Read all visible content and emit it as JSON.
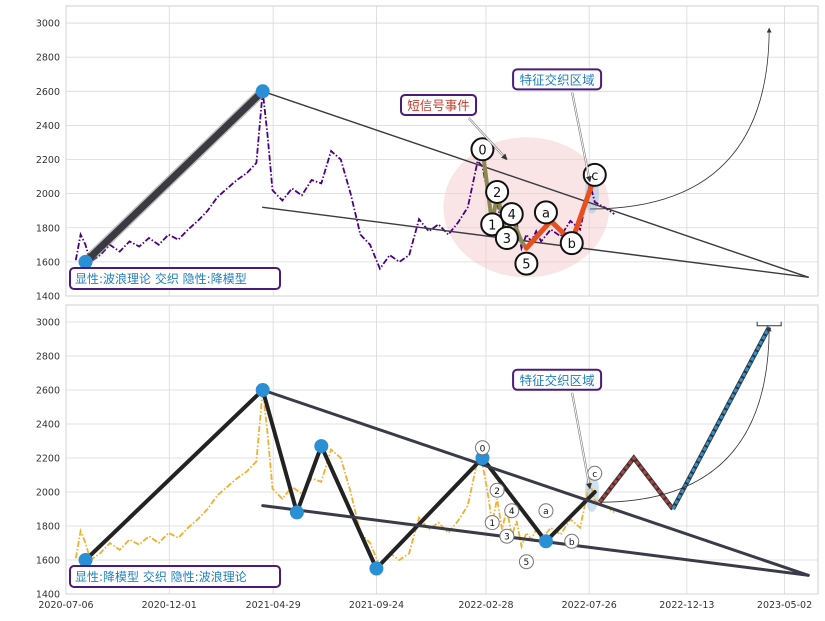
{
  "chart_data": [
    {
      "type": "line",
      "panel": "top",
      "ylim": [
        1400,
        3100
      ],
      "y_ticks": [
        1400,
        1600,
        1800,
        2000,
        2200,
        2400,
        2600,
        2800,
        3000
      ],
      "x_range": [
        "2020-07-06",
        "2023-06-19"
      ],
      "grid": true,
      "series": [
        {
          "style": "dash-dot",
          "color": "#4b0082",
          "points": [
            [
              "2020-07-20",
              1610
            ],
            [
              "2020-07-27",
              1760
            ],
            [
              "2020-08-03",
              1700
            ],
            [
              "2020-08-10",
              1600
            ],
            [
              "2020-08-24",
              1640
            ],
            [
              "2020-09-07",
              1700
            ],
            [
              "2020-09-21",
              1660
            ],
            [
              "2020-10-05",
              1720
            ],
            [
              "2020-10-19",
              1690
            ],
            [
              "2020-11-02",
              1740
            ],
            [
              "2020-11-16",
              1700
            ],
            [
              "2020-11-30",
              1760
            ],
            [
              "2020-12-14",
              1730
            ],
            [
              "2020-12-28",
              1790
            ],
            [
              "2021-01-11",
              1840
            ],
            [
              "2021-01-25",
              1900
            ],
            [
              "2021-02-08",
              1980
            ],
            [
              "2021-02-22",
              2030
            ],
            [
              "2021-03-08",
              2080
            ],
            [
              "2021-03-22",
              2120
            ],
            [
              "2021-04-05",
              2180
            ],
            [
              "2021-04-14",
              2600
            ],
            [
              "2021-04-21",
              2340
            ],
            [
              "2021-04-28",
              2020
            ],
            [
              "2021-05-12",
              1960
            ],
            [
              "2021-05-26",
              2030
            ],
            [
              "2021-06-09",
              1990
            ],
            [
              "2021-06-23",
              2080
            ],
            [
              "2021-07-07",
              2060
            ],
            [
              "2021-07-21",
              2250
            ],
            [
              "2021-08-04",
              2200
            ],
            [
              "2021-08-18",
              2000
            ],
            [
              "2021-09-01",
              1760
            ],
            [
              "2021-09-15",
              1700
            ],
            [
              "2021-09-29",
              1560
            ],
            [
              "2021-10-13",
              1640
            ],
            [
              "2021-10-27",
              1600
            ],
            [
              "2021-11-10",
              1640
            ],
            [
              "2021-11-24",
              1850
            ],
            [
              "2021-12-08",
              1780
            ],
            [
              "2021-12-22",
              1820
            ],
            [
              "2022-01-05",
              1760
            ],
            [
              "2022-01-19",
              1830
            ],
            [
              "2022-02-02",
              1920
            ],
            [
              "2022-02-16",
              2190
            ],
            [
              "2022-02-23",
              2160
            ],
            [
              "2022-03-02",
              2010
            ],
            [
              "2022-03-09",
              1820
            ],
            [
              "2022-03-16",
              1960
            ],
            [
              "2022-03-23",
              1780
            ],
            [
              "2022-03-30",
              1900
            ],
            [
              "2022-04-06",
              1740
            ],
            [
              "2022-04-13",
              1830
            ],
            [
              "2022-04-20",
              1680
            ],
            [
              "2022-04-27",
              1760
            ],
            [
              "2022-05-04",
              1720
            ],
            [
              "2022-05-11",
              1780
            ],
            [
              "2022-05-18",
              1720
            ],
            [
              "2022-06-01",
              1790
            ],
            [
              "2022-06-15",
              1750
            ],
            [
              "2022-06-29",
              1840
            ],
            [
              "2022-07-13",
              1790
            ],
            [
              "2022-07-27",
              2060
            ],
            [
              "2022-08-03",
              1950
            ],
            [
              "2022-08-17",
              1920
            ],
            [
              "2022-08-31",
              1880
            ]
          ]
        },
        {
          "name": "wave-lines",
          "style": "solid",
          "color": "#3a3a40",
          "segments": [
            [
              [
                "2021-04-14",
                2600
              ],
              [
                "2023-06-05",
                1510
              ]
            ],
            [
              [
                "2021-04-14",
                1920
              ],
              [
                "2023-06-05",
                1510
              ]
            ],
            [
              [
                "2022-07-27",
                1910
              ],
              [
                "2023-04-10",
                2970
              ]
            ]
          ]
        },
        {
          "name": "impulse",
          "color": "#3a3a40",
          "segments": [
            [
              [
                "2020-08-03",
                1600
              ],
              [
                "2021-04-14",
                2600
              ]
            ]
          ]
        },
        {
          "name": "down-wave",
          "color": "#8a8a50",
          "segments": [
            [
              [
                "2022-02-23",
                2260
              ],
              [
                "2022-03-09",
                1820
              ],
              [
                "2022-03-16",
                2000
              ],
              [
                "2022-03-30",
                1740
              ],
              [
                "2022-04-06",
                1860
              ],
              [
                "2022-04-20",
                1720
              ],
              [
                "2022-04-27",
                1680
              ]
            ]
          ]
        },
        {
          "name": "abc",
          "color": "#e8501f",
          "segments": [
            [
              [
                "2022-04-27",
                1680
              ],
              [
                "2022-06-01",
                1840
              ],
              [
                "2022-07-01",
                1720
              ],
              [
                "2022-08-03",
                2100
              ]
            ]
          ]
        }
      ],
      "wave_labels": [
        {
          "text": "0",
          "x": "2022-02-23",
          "y": 2260
        },
        {
          "text": "1",
          "x": "2022-03-09",
          "y": 1820
        },
        {
          "text": "2",
          "x": "2022-03-16",
          "y": 2010
        },
        {
          "text": "3",
          "x": "2022-03-30",
          "y": 1740
        },
        {
          "text": "4",
          "x": "2022-04-06",
          "y": 1880
        },
        {
          "text": "5",
          "x": "2022-04-27",
          "y": 1590
        },
        {
          "text": "a",
          "x": "2022-05-25",
          "y": 1890
        },
        {
          "text": "b",
          "x": "2022-07-01",
          "y": 1710
        },
        {
          "text": "c",
          "x": "2022-08-03",
          "y": 2110
        }
      ],
      "key_points": [
        [
          "2020-08-03",
          1600
        ],
        [
          "2021-04-14",
          2600
        ]
      ],
      "annotations": [
        {
          "text": "特征交织区域",
          "x": "2022-06-10",
          "y": 2670,
          "color": "#1f7fbf"
        },
        {
          "text": "短信号事件",
          "x": "2021-12-22",
          "y": 2520,
          "color": "#c0392b"
        }
      ],
      "legend_box": "显性:波浪理论 交织 隐性:降模型"
    },
    {
      "type": "line",
      "panel": "bottom",
      "ylim": [
        1400,
        3100
      ],
      "y_ticks": [
        1400,
        1600,
        1800,
        2000,
        2200,
        2400,
        2600,
        2800,
        3000
      ],
      "x_range": [
        "2020-07-06",
        "2023-06-19"
      ],
      "x_ticks": [
        "2020-07-06",
        "2020-12-01",
        "2021-04-29",
        "2021-09-24",
        "2022-02-28",
        "2022-07-26",
        "2022-12-13",
        "2023-05-02"
      ],
      "grid": true,
      "series": [
        {
          "style": "dash-dot",
          "color": "#f0b030",
          "points": [
            [
              "2020-07-20",
              1610
            ],
            [
              "2020-07-27",
              1770
            ],
            [
              "2020-08-03",
              1700
            ],
            [
              "2020-08-10",
              1600
            ],
            [
              "2020-08-24",
              1640
            ],
            [
              "2020-09-07",
              1700
            ],
            [
              "2020-09-21",
              1660
            ],
            [
              "2020-10-05",
              1720
            ],
            [
              "2020-10-19",
              1690
            ],
            [
              "2020-11-02",
              1740
            ],
            [
              "2020-11-16",
              1700
            ],
            [
              "2020-11-30",
              1760
            ],
            [
              "2020-12-14",
              1730
            ],
            [
              "2020-12-28",
              1790
            ],
            [
              "2021-01-11",
              1840
            ],
            [
              "2021-01-25",
              1900
            ],
            [
              "2021-02-08",
              1980
            ],
            [
              "2021-02-22",
              2030
            ],
            [
              "2021-03-08",
              2080
            ],
            [
              "2021-03-22",
              2120
            ],
            [
              "2021-04-05",
              2180
            ],
            [
              "2021-04-14",
              2600
            ],
            [
              "2021-04-21",
              2340
            ],
            [
              "2021-04-28",
              2020
            ],
            [
              "2021-05-12",
              1960
            ],
            [
              "2021-05-26",
              2030
            ],
            [
              "2021-06-09",
              1990
            ],
            [
              "2021-06-23",
              2080
            ],
            [
              "2021-07-07",
              2060
            ],
            [
              "2021-07-21",
              2250
            ],
            [
              "2021-08-04",
              2200
            ],
            [
              "2021-08-18",
              2000
            ],
            [
              "2021-09-01",
              1760
            ],
            [
              "2021-09-15",
              1700
            ],
            [
              "2021-09-29",
              1560
            ],
            [
              "2021-10-13",
              1640
            ],
            [
              "2021-10-27",
              1600
            ],
            [
              "2021-11-10",
              1640
            ],
            [
              "2021-11-24",
              1850
            ],
            [
              "2021-12-08",
              1780
            ],
            [
              "2021-12-22",
              1820
            ],
            [
              "2022-01-05",
              1760
            ],
            [
              "2022-01-19",
              1830
            ],
            [
              "2022-02-02",
              1920
            ],
            [
              "2022-02-16",
              2190
            ],
            [
              "2022-02-23",
              2160
            ],
            [
              "2022-03-02",
              2010
            ],
            [
              "2022-03-09",
              1820
            ],
            [
              "2022-03-16",
              1960
            ],
            [
              "2022-03-23",
              1780
            ],
            [
              "2022-03-30",
              1900
            ],
            [
              "2022-04-06",
              1740
            ],
            [
              "2022-04-13",
              1830
            ],
            [
              "2022-04-20",
              1680
            ],
            [
              "2022-04-27",
              1760
            ],
            [
              "2022-05-04",
              1720
            ],
            [
              "2022-05-11",
              1780
            ],
            [
              "2022-05-18",
              1720
            ],
            [
              "2022-06-01",
              1790
            ],
            [
              "2022-06-15",
              1750
            ],
            [
              "2022-06-29",
              1840
            ],
            [
              "2022-07-13",
              1790
            ],
            [
              "2022-07-27",
              2060
            ],
            [
              "2022-08-03",
              1950
            ],
            [
              "2022-08-17",
              1920
            ],
            [
              "2022-08-31",
              1880
            ]
          ]
        },
        {
          "name": "model-zigzag",
          "style": "solid",
          "color": "#222222",
          "segments": [
            [
              [
                "2020-08-03",
                1600
              ],
              [
                "2021-04-14",
                2600
              ],
              [
                "2021-06-02",
                1880
              ],
              [
                "2021-07-07",
                2270
              ],
              [
                "2021-09-24",
                1550
              ],
              [
                "2022-02-23",
                2200
              ],
              [
                "2022-05-25",
                1710
              ],
              [
                "2022-08-03",
                2000
              ]
            ]
          ]
        },
        {
          "name": "triangle",
          "color": "#3a3a48",
          "segments": [
            [
              [
                "2021-04-14",
                2600
              ],
              [
                "2023-06-05",
                1510
              ]
            ],
            [
              [
                "2021-04-14",
                1920
              ],
              [
                "2023-06-05",
                1510
              ]
            ]
          ]
        },
        {
          "name": "forecast-red",
          "color": "#b04040",
          "segments": [
            [
              [
                "2022-08-10",
                1940
              ],
              [
                "2022-09-28",
                2200
              ],
              [
                "2022-11-23",
                1900
              ]
            ]
          ]
        },
        {
          "name": "forecast-blue",
          "color": "#2e90d0",
          "segments": [
            [
              [
                "2022-11-23",
                1900
              ],
              [
                "2023-04-10",
                2970
              ]
            ]
          ]
        },
        {
          "name": "projection-arc",
          "color": "#333333",
          "segments": [
            [
              [
                "2022-08-10",
                1940
              ],
              [
                "2023-04-10",
                2970
              ]
            ]
          ]
        }
      ],
      "wave_labels": [
        {
          "text": "0",
          "x": "2022-02-23",
          "y": 2260
        },
        {
          "text": "1",
          "x": "2022-03-09",
          "y": 1820
        },
        {
          "text": "2",
          "x": "2022-03-16",
          "y": 2010
        },
        {
          "text": "3",
          "x": "2022-03-30",
          "y": 1740
        },
        {
          "text": "4",
          "x": "2022-04-06",
          "y": 1890
        },
        {
          "text": "5",
          "x": "2022-04-27",
          "y": 1590
        },
        {
          "text": "a",
          "x": "2022-05-25",
          "y": 1890
        },
        {
          "text": "b",
          "x": "2022-07-01",
          "y": 1710
        },
        {
          "text": "c",
          "x": "2022-08-03",
          "y": 2110
        }
      ],
      "key_points": [
        [
          "2020-08-03",
          1600
        ],
        [
          "2021-04-14",
          2600
        ],
        [
          "2021-06-02",
          1880
        ],
        [
          "2021-07-07",
          2270
        ],
        [
          "2021-09-24",
          1550
        ],
        [
          "2022-02-23",
          2200
        ],
        [
          "2022-05-25",
          1710
        ]
      ],
      "annotations": [
        {
          "text": "特征交织区域",
          "x": "2022-06-10",
          "y": 2660,
          "color": "#1f7fbf"
        }
      ],
      "legend_box": "显性:降模型 交织 隐性:波浪理论"
    }
  ]
}
